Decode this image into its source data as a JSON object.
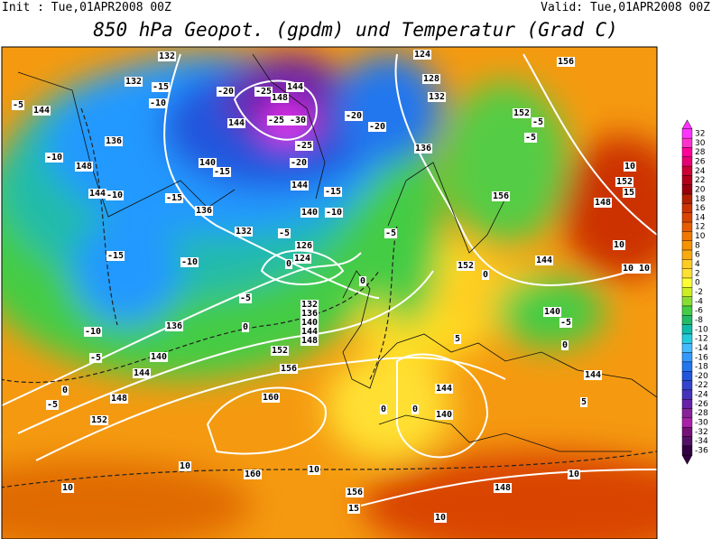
{
  "header": {
    "init": "Init : Tue,01APR2008 00Z",
    "valid": "Valid: Tue,01APR2008 00Z",
    "title": "850 hPa Geopot. (gpdm) und Temperatur (Grad C)"
  },
  "colorbar": {
    "labels": [
      "32",
      "30",
      "28",
      "26",
      "24",
      "22",
      "20",
      "18",
      "16",
      "14",
      "12",
      "10",
      "8",
      "6",
      "4",
      "2",
      "0",
      "-2",
      "-4",
      "-6",
      "-8",
      "-10",
      "-12",
      "-14",
      "-16",
      "-18",
      "-20",
      "-22",
      "-24",
      "-26",
      "-28",
      "-30",
      "-32",
      "-34",
      "-36"
    ],
    "colors": [
      "#ff33ff",
      "#ff33cc",
      "#ff0099",
      "#e60073",
      "#cc0033",
      "#b3001a",
      "#99000d",
      "#b32000",
      "#cc3300",
      "#d94400",
      "#e65c00",
      "#f07800",
      "#f59200",
      "#faaa10",
      "#ffcc22",
      "#ffe033",
      "#ffff33",
      "#ccee22",
      "#88dd33",
      "#44cc44",
      "#22bb66",
      "#11bbaa",
      "#22ccdd",
      "#44bbff",
      "#3399ff",
      "#2277ee",
      "#2255dd",
      "#3344cc",
      "#4433bb",
      "#6622aa",
      "#882299",
      "#aa22aa",
      "#771177",
      "#551166",
      "#330044"
    ]
  },
  "map_labels": [
    "132",
    "132",
    "-15",
    "-20",
    "-25",
    "148",
    "144",
    "-5",
    "144",
    "-10",
    "144",
    "-25 -30",
    "-20",
    "-20",
    "136",
    "140",
    "-15",
    "-25",
    "-20",
    "-10",
    "148",
    "144",
    "-10",
    "-15",
    "-15",
    "144",
    "136",
    "140",
    "-10",
    "132",
    "-5",
    "126",
    "124",
    "0",
    "-15",
    "-10",
    "-5",
    "132",
    "136",
    "140",
    "144",
    "148",
    "0",
    "-10",
    "136",
    "-5",
    "140",
    "144",
    "152",
    "156",
    "0",
    "148",
    "-5",
    "160",
    "152",
    "10",
    "160",
    "10",
    "10",
    "156",
    "15",
    "10",
    "124",
    "128",
    "132",
    "136",
    "156",
    "152",
    "-5",
    "-5",
    "156",
    "152",
    "0",
    "144",
    "-5",
    "0",
    "-5",
    "140",
    "0",
    "144",
    "144",
    "140",
    "0",
    "0",
    "5",
    "5",
    "148",
    "10",
    "10",
    "152",
    "15",
    "148",
    "10",
    "10 10"
  ]
}
